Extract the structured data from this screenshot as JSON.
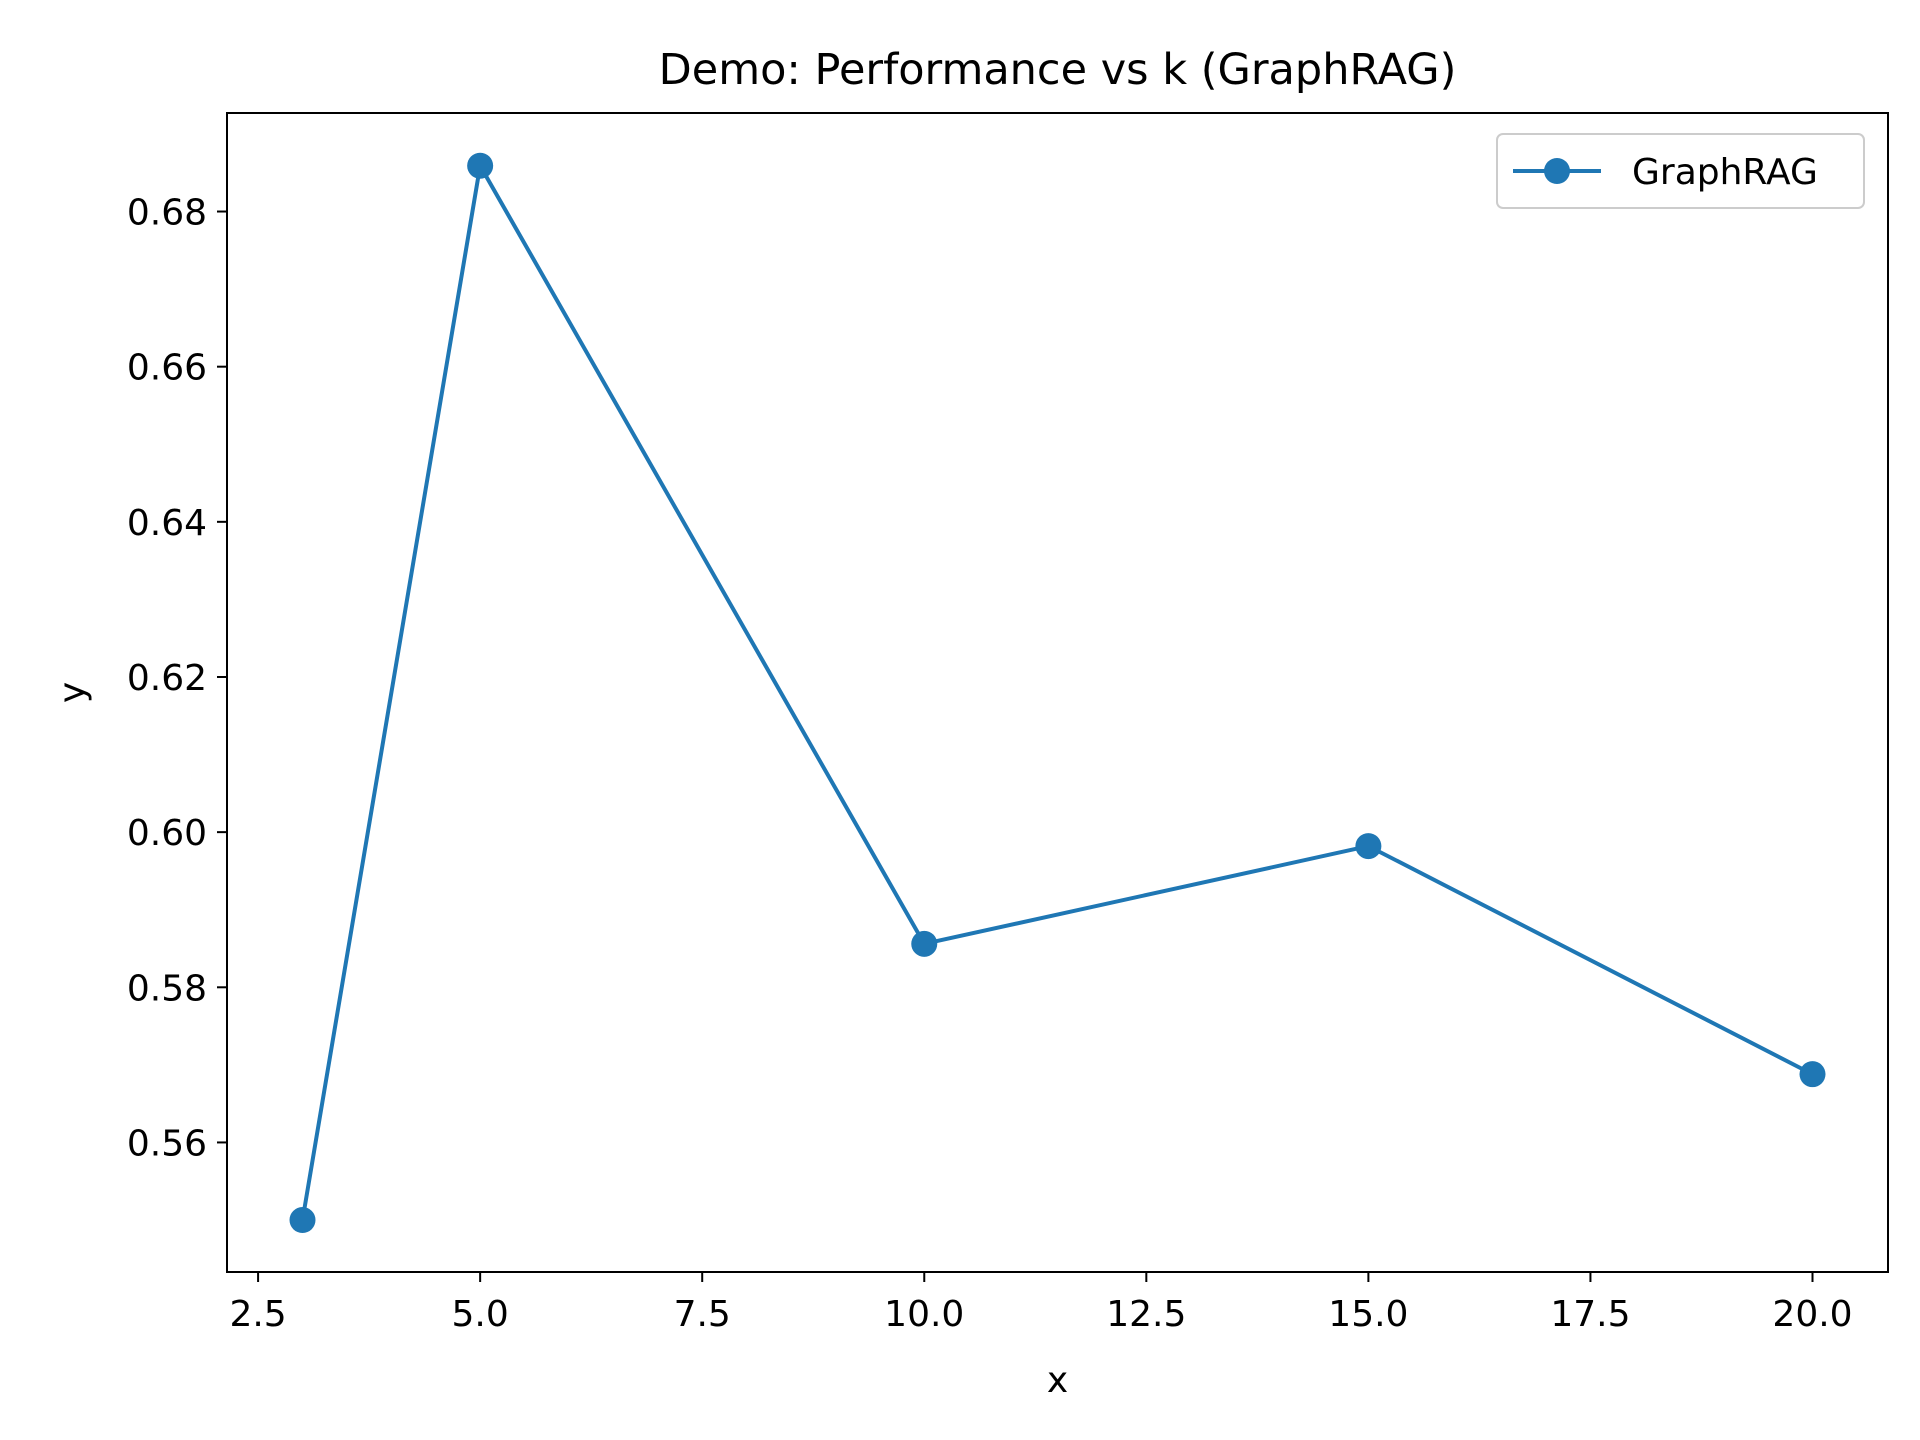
{
  "chart_data": {
    "type": "line",
    "title": "Demo: Performance vs k (GraphRAG)",
    "xlabel": "x",
    "ylabel": "y",
    "xlim": [
      2.15,
      20.85
    ],
    "ylim": [
      0.5433,
      0.6927
    ],
    "xticks": [
      2.5,
      5.0,
      7.5,
      10.0,
      12.5,
      15.0,
      17.5,
      20.0
    ],
    "xtick_labels": [
      "2.5",
      "5.0",
      "7.5",
      "10.0",
      "12.5",
      "15.0",
      "17.5",
      "20.0"
    ],
    "yticks": [
      0.56,
      0.58,
      0.6,
      0.62,
      0.64,
      0.66,
      0.68
    ],
    "ytick_labels": [
      "0.56",
      "0.58",
      "0.60",
      "0.62",
      "0.64",
      "0.66",
      "0.68"
    ],
    "grid": false,
    "legend_position": "top-right",
    "series": [
      {
        "name": "GraphRAG",
        "color": "#1f77b4",
        "marker": "circle",
        "x": [
          3,
          5,
          10,
          15,
          20
        ],
        "y": [
          0.55,
          0.6859,
          0.5856,
          0.5982,
          0.5688
        ]
      }
    ]
  }
}
